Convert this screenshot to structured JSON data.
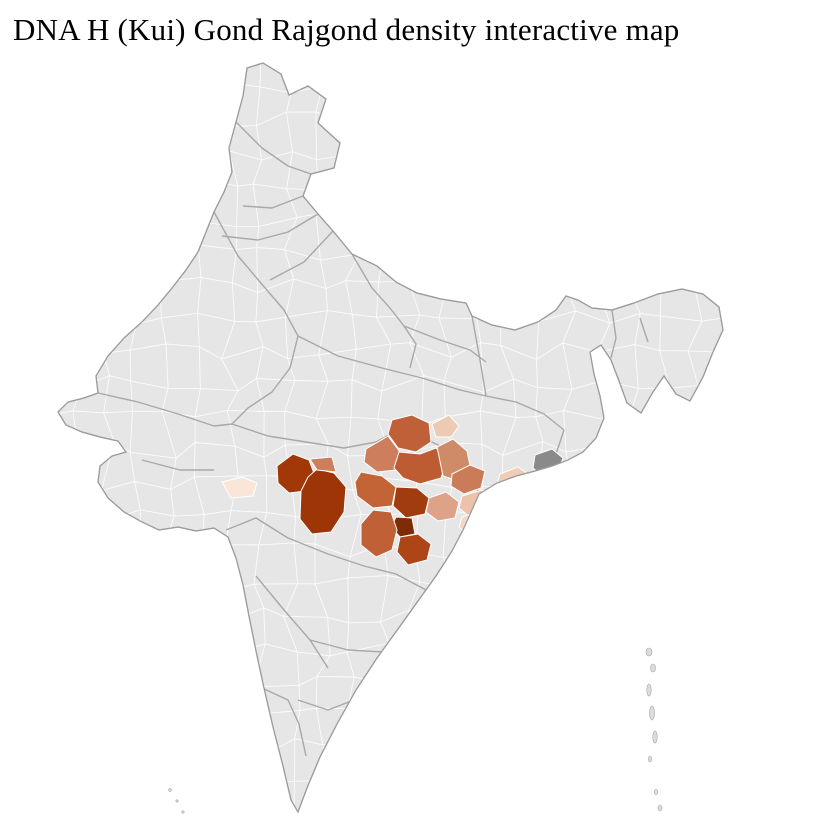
{
  "page": {
    "title": "DNA H (Kui) Gond Rajgond density interactive map"
  },
  "map": {
    "label": "India district-level choropleth",
    "colors": {
      "base_fill": "#e6e6e6",
      "district_border": "#ffffff",
      "state_border": "#a8a8a8",
      "country_outline": "#9c9c9c",
      "islands_fill": "#dcdcdc",
      "sea_background": "#ffffff",
      "no_data_gray": "#8a8a8a"
    },
    "density_palette": [
      "#7d2c05",
      "#9e3507",
      "#a23708",
      "#ad4517",
      "#bd5c32",
      "#c06038",
      "#c97c57",
      "#cf8a68",
      "#dda288",
      "#ebc2aa",
      "#f3d8c6",
      "#f9e6d9"
    ],
    "regions": [
      {
        "id": "west-very-light",
        "level": "very-low",
        "color": "#f9e6d9"
      },
      {
        "id": "mp-west-dark",
        "level": "very-high",
        "color": "#a23708"
      },
      {
        "id": "mp-east-dark",
        "level": "very-high",
        "color": "#9e3507"
      },
      {
        "id": "mp-medium-notch",
        "level": "medium",
        "color": "#cc7f5a"
      },
      {
        "id": "cg-north",
        "level": "medium-high",
        "color": "#c06038"
      },
      {
        "id": "cg-northwest",
        "level": "medium",
        "color": "#cd7f5d"
      },
      {
        "id": "cg-mid",
        "level": "medium-high",
        "color": "#bd5c32"
      },
      {
        "id": "cg-mid-east",
        "level": "medium",
        "color": "#cf8a68"
      },
      {
        "id": "cg-west",
        "level": "medium-high",
        "color": "#c36437"
      },
      {
        "id": "cg-center-dark",
        "level": "very-high",
        "color": "#a13c0e"
      },
      {
        "id": "cg-darkest",
        "level": "highest",
        "color": "#7d2c05"
      },
      {
        "id": "cg-south",
        "level": "medium-high",
        "color": "#bf6036"
      },
      {
        "id": "cg-southeast",
        "level": "high",
        "color": "#ad4517"
      },
      {
        "id": "cg-east-light",
        "level": "medium-low",
        "color": "#dda288"
      },
      {
        "id": "od-medium",
        "level": "medium",
        "color": "#c97c57"
      },
      {
        "id": "od-light-1",
        "level": "low",
        "color": "#ebc2aa"
      },
      {
        "id": "od-light-2",
        "level": "very-low",
        "color": "#f3d8c6"
      },
      {
        "id": "od-light-3",
        "level": "low",
        "color": "#f0cdb6"
      },
      {
        "id": "od-north-light",
        "level": "low",
        "color": "#eccab4"
      },
      {
        "id": "coastal-gray",
        "level": "no-data",
        "color": "#8a8a8a"
      }
    ]
  }
}
